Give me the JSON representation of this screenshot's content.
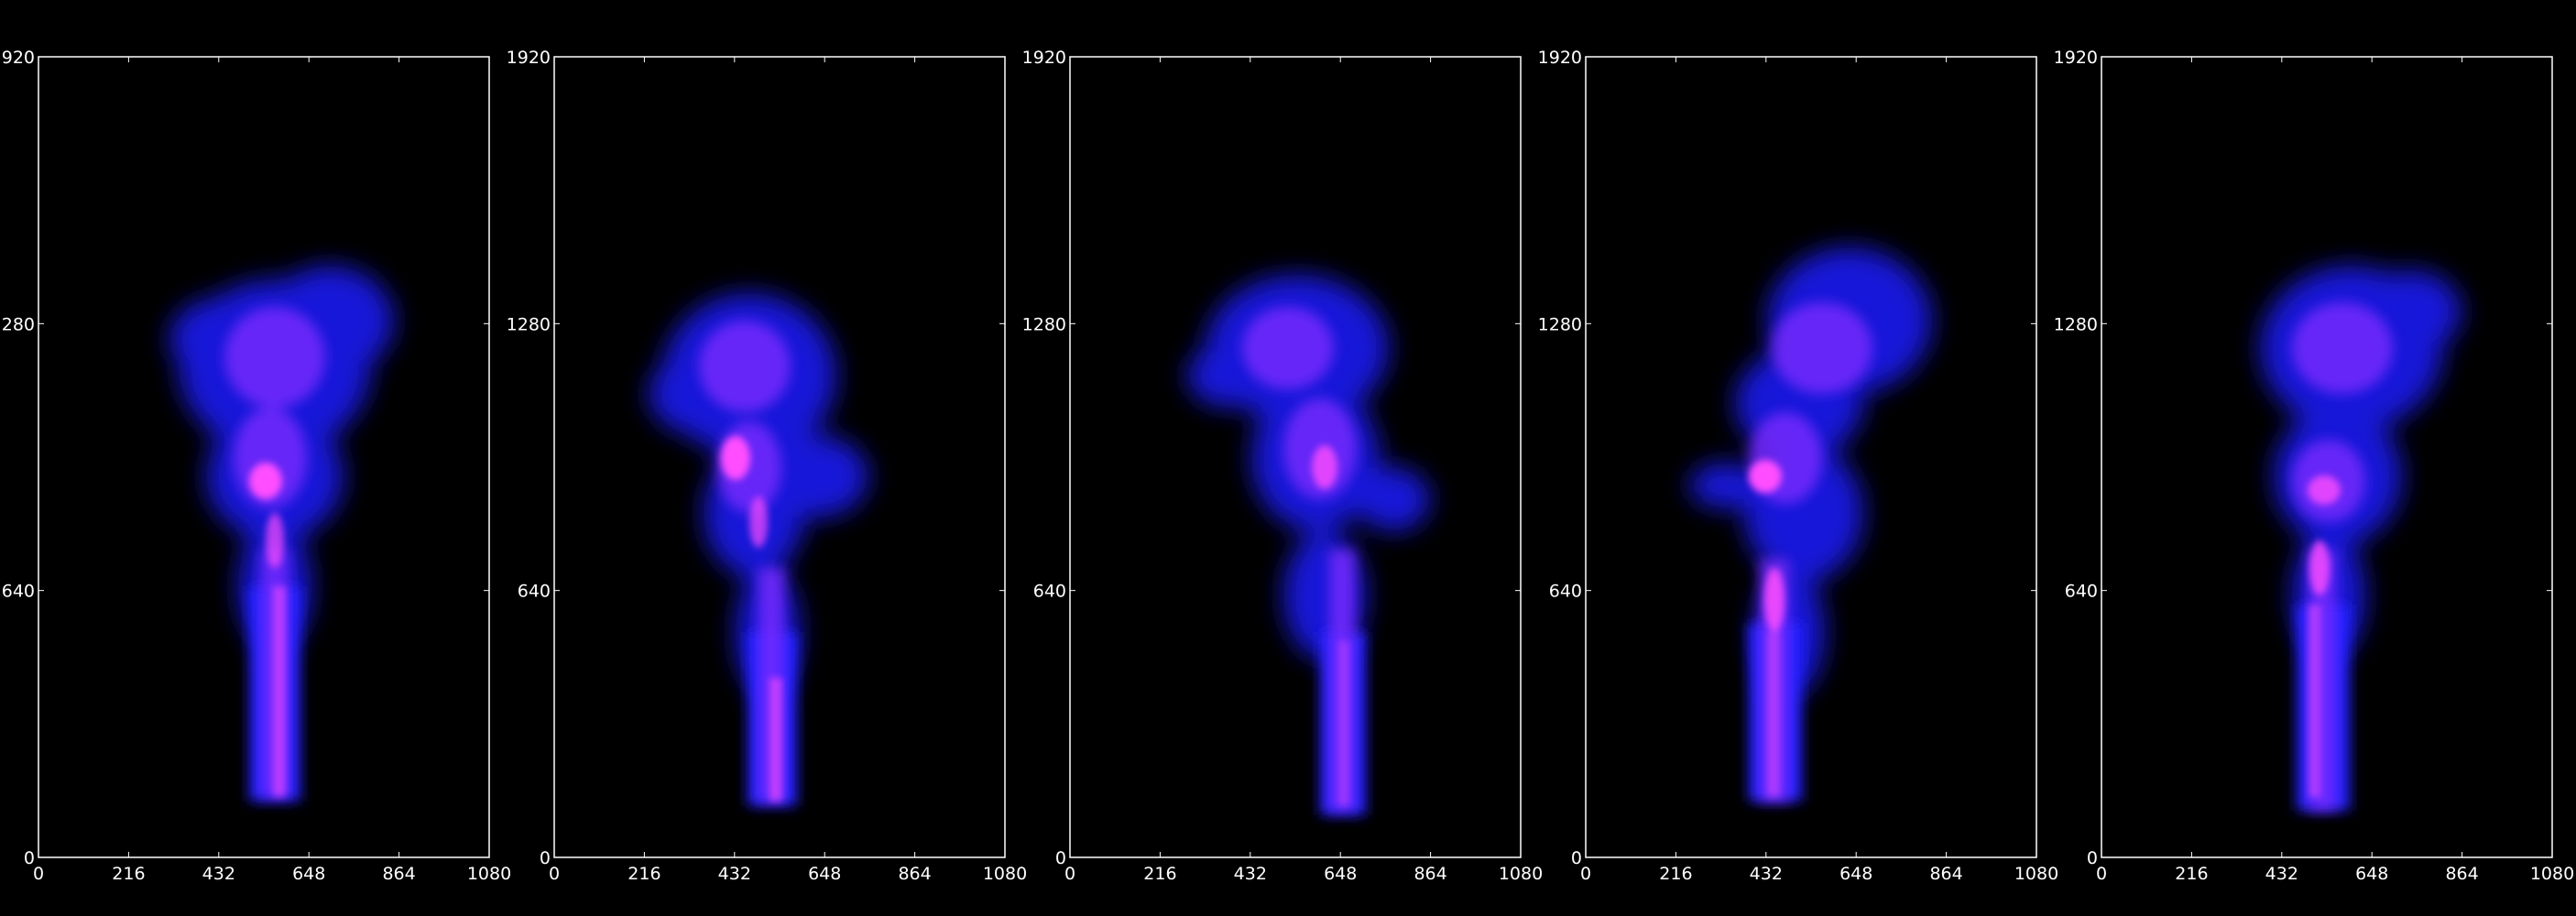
{
  "figure": {
    "background_color": "#000000",
    "axis_color": "#ffffff",
    "plume_colors": {
      "outer": "#1a1aff",
      "mid": "#7a2bff",
      "core": "#ff4dff"
    },
    "panels": [
      {
        "x_ticks": [
          "0",
          "216",
          "432",
          "648",
          "864",
          "1080"
        ],
        "y_ticks": [
          "0",
          "640",
          "1280",
          "1920"
        ]
      },
      {
        "x_ticks": [
          "0",
          "216",
          "432",
          "648",
          "864",
          "1080"
        ],
        "y_ticks": [
          "0",
          "640",
          "1280",
          "1920"
        ]
      },
      {
        "x_ticks": [
          "0",
          "216",
          "432",
          "648",
          "864",
          "1080"
        ],
        "y_ticks": [
          "0",
          "640",
          "1280",
          "1920"
        ]
      },
      {
        "x_ticks": [
          "0",
          "216",
          "432",
          "648",
          "864",
          "1080"
        ],
        "y_ticks": [
          "0",
          "640",
          "1280",
          "1920"
        ]
      },
      {
        "x_ticks": [
          "0",
          "216",
          "432",
          "648",
          "864",
          "1080"
        ],
        "y_ticks": [
          "0",
          "640",
          "1280",
          "1920"
        ]
      }
    ]
  }
}
